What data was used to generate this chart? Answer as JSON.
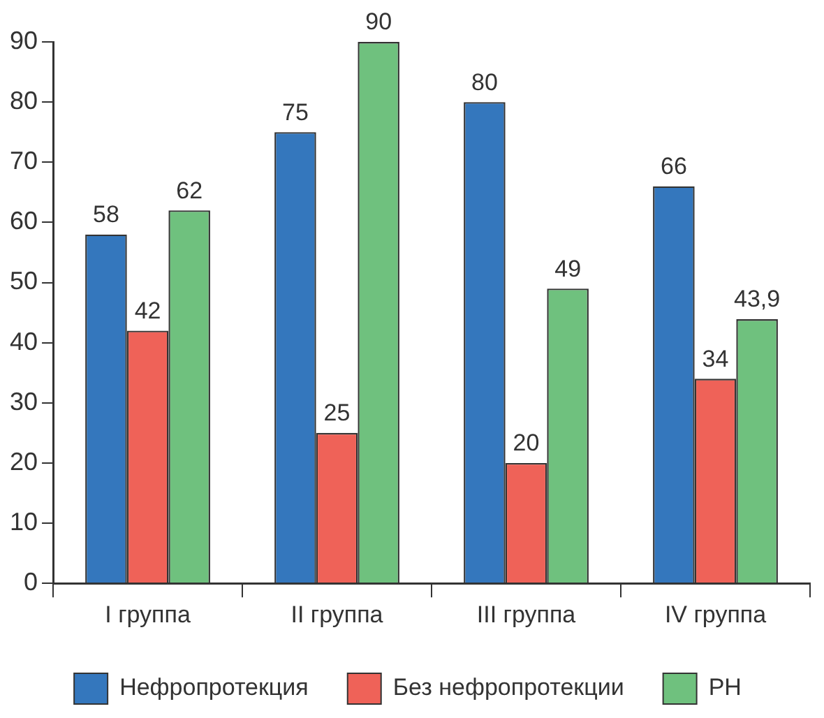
{
  "chart_data": {
    "type": "bar",
    "categories": [
      "I группа",
      "II группа",
      "III группа",
      "IV группа"
    ],
    "series": [
      {
        "name": "Нефропротекция",
        "color": "#3477bd",
        "values": [
          58,
          75,
          80,
          66
        ],
        "value_labels": [
          "58",
          "75",
          "80",
          "66"
        ]
      },
      {
        "name": "Без нефропротекции",
        "color": "#ef6258",
        "values": [
          42,
          25,
          20,
          34
        ],
        "value_labels": [
          "42",
          "25",
          "20",
          "34"
        ]
      },
      {
        "name": "PH",
        "color": "#6fc17e",
        "values": [
          62,
          90,
          49,
          43.9
        ],
        "value_labels": [
          "62",
          "90",
          "49",
          "43,9"
        ]
      }
    ],
    "ylim": [
      0,
      90
    ],
    "yticks": [
      0,
      10,
      20,
      30,
      40,
      50,
      60,
      70,
      80,
      90
    ],
    "grid": false,
    "legend": "bottom"
  }
}
